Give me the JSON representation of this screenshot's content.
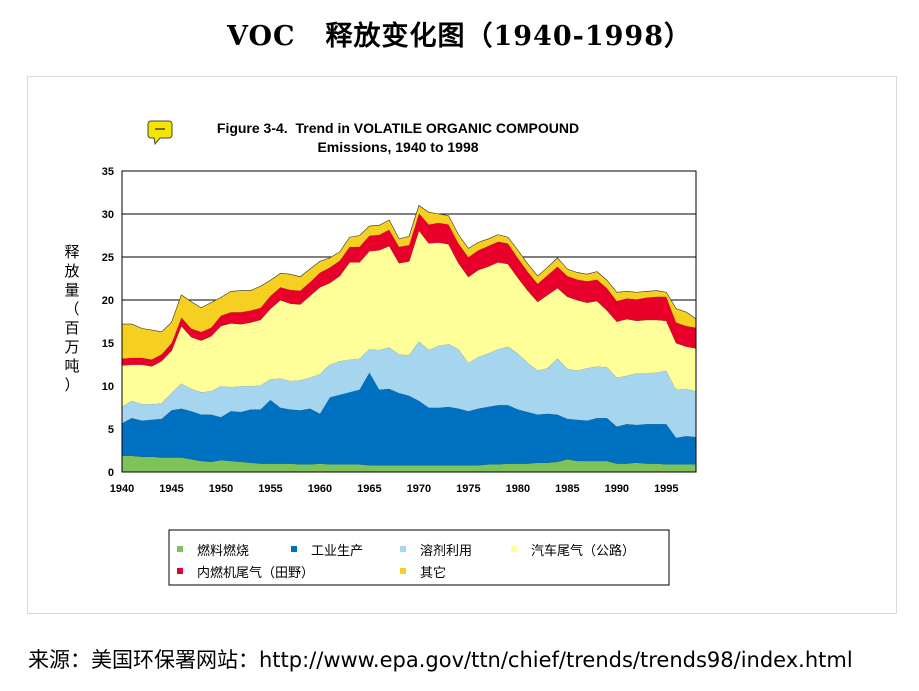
{
  "slide": {
    "title_prefix": "VOC",
    "title_main": "释放变化图（1940-1998）",
    "source": "来源：美国环保署网站：http://www.epa.gov/ttn/chief/trends/trends98/index.html"
  },
  "chart_data": {
    "type": "area",
    "stacked": true,
    "title_line1": "Figure 3-4.  Trend in VOLATILE ORGANIC COMPOUND",
    "title_line2": "Emissions, 1940 to 1998",
    "ylabel": "释放量（百万吨）",
    "xlabel": "",
    "ylim": [
      0,
      35
    ],
    "xlim": [
      1940,
      1998
    ],
    "yticks": [
      "0",
      "5",
      "10",
      "15",
      "20",
      "25",
      "30",
      "35"
    ],
    "xticks": [
      "1940",
      "1945",
      "1950",
      "1955",
      "1960",
      "1965",
      "1970",
      "1975",
      "1980",
      "1985",
      "1990",
      "1995"
    ],
    "grid": true,
    "legend_position": "bottom",
    "x": [
      1940,
      1941,
      1942,
      1943,
      1944,
      1945,
      1946,
      1947,
      1948,
      1949,
      1950,
      1951,
      1952,
      1953,
      1954,
      1955,
      1956,
      1957,
      1958,
      1959,
      1960,
      1961,
      1962,
      1963,
      1964,
      1965,
      1966,
      1967,
      1968,
      1969,
      1970,
      1971,
      1972,
      1973,
      1974,
      1975,
      1976,
      1977,
      1978,
      1979,
      1980,
      1981,
      1982,
      1983,
      1984,
      1985,
      1986,
      1987,
      1988,
      1989,
      1990,
      1991,
      1992,
      1993,
      1994,
      1995,
      1996,
      1997,
      1998
    ],
    "series": [
      {
        "name": "燃料燃烧",
        "color": "#7dc35a",
        "values": [
          1.9,
          1.9,
          1.8,
          1.8,
          1.7,
          1.7,
          1.7,
          1.5,
          1.3,
          1.2,
          1.4,
          1.3,
          1.2,
          1.1,
          1.0,
          1.0,
          1.0,
          1.0,
          0.9,
          0.9,
          1.0,
          0.9,
          0.9,
          0.9,
          0.9,
          0.8,
          0.8,
          0.8,
          0.8,
          0.8,
          0.8,
          0.8,
          0.8,
          0.8,
          0.8,
          0.8,
          0.8,
          0.9,
          0.9,
          1.0,
          1.0,
          1.0,
          1.1,
          1.1,
          1.2,
          1.5,
          1.3,
          1.3,
          1.3,
          1.3,
          1.0,
          1.0,
          1.1,
          1.0,
          1.0,
          0.9,
          0.9,
          0.9,
          0.9
        ]
      },
      {
        "name": "工业生产",
        "color": "#0070c0",
        "values": [
          3.8,
          4.4,
          4.2,
          4.3,
          4.5,
          5.5,
          5.7,
          5.6,
          5.4,
          5.5,
          5.0,
          5.8,
          5.8,
          6.2,
          6.3,
          7.4,
          6.5,
          6.3,
          6.3,
          6.5,
          5.8,
          7.8,
          8.1,
          8.4,
          8.7,
          10.8,
          8.8,
          8.9,
          8.4,
          8.1,
          7.5,
          6.7,
          6.7,
          6.8,
          6.6,
          6.3,
          6.6,
          6.7,
          6.9,
          6.8,
          6.3,
          6.0,
          5.6,
          5.7,
          5.5,
          4.7,
          4.8,
          4.7,
          5.0,
          5.0,
          4.3,
          4.6,
          4.4,
          4.6,
          4.6,
          4.7,
          3.1,
          3.3,
          3.2
        ]
      },
      {
        "name": "溶剂利用",
        "color": "#a6d5f0",
        "values": [
          1.9,
          2.0,
          1.9,
          1.8,
          1.8,
          2.0,
          2.9,
          2.6,
          2.6,
          2.7,
          3.6,
          2.8,
          3.0,
          2.7,
          2.8,
          2.4,
          3.4,
          3.3,
          3.5,
          3.6,
          4.6,
          3.8,
          3.9,
          3.8,
          3.6,
          2.7,
          4.6,
          4.8,
          4.5,
          4.7,
          6.9,
          6.7,
          7.2,
          7.3,
          6.9,
          5.6,
          6.0,
          6.2,
          6.5,
          6.8,
          6.5,
          5.7,
          5.1,
          5.3,
          6.5,
          5.8,
          5.7,
          6.1,
          6.0,
          5.9,
          5.7,
          5.6,
          6.0,
          5.9,
          6.0,
          6.2,
          5.6,
          5.5,
          5.3
        ]
      },
      {
        "name": "汽车尾气（公路）",
        "color": "#ffff99",
        "values": [
          4.8,
          4.2,
          4.6,
          4.4,
          4.9,
          4.9,
          6.7,
          6.0,
          6.0,
          6.4,
          7.0,
          7.4,
          7.2,
          7.4,
          7.6,
          8.2,
          9.1,
          9.0,
          8.8,
          9.5,
          10.1,
          9.5,
          9.9,
          11.3,
          11.2,
          11.4,
          11.6,
          11.8,
          10.6,
          10.9,
          12.9,
          12.4,
          12.0,
          11.6,
          10.0,
          10.0,
          10.1,
          10.1,
          10.1,
          9.6,
          8.8,
          8.4,
          8.0,
          8.5,
          8.2,
          8.4,
          8.2,
          7.6,
          7.6,
          6.6,
          6.5,
          6.6,
          6.1,
          6.2,
          6.1,
          5.8,
          5.4,
          4.9,
          5.0
        ]
      },
      {
        "name": "内燃机尾气（田野）",
        "color": "#e8002a",
        "values": [
          0.8,
          0.8,
          0.8,
          0.8,
          0.8,
          0.9,
          1.0,
          1.0,
          1.0,
          1.0,
          1.2,
          1.3,
          1.4,
          1.4,
          1.4,
          1.5,
          1.5,
          1.6,
          1.6,
          1.6,
          1.7,
          1.8,
          1.8,
          1.8,
          1.8,
          1.8,
          1.8,
          1.9,
          1.9,
          1.9,
          2.0,
          2.2,
          2.3,
          2.3,
          2.3,
          2.3,
          2.3,
          2.4,
          2.4,
          2.4,
          2.3,
          2.2,
          2.1,
          2.3,
          2.5,
          2.4,
          2.4,
          2.5,
          2.5,
          2.6,
          2.4,
          2.4,
          2.5,
          2.6,
          2.7,
          2.8,
          2.4,
          2.4,
          2.4
        ]
      },
      {
        "name": "其它",
        "color": "#f5d020",
        "values": [
          4.0,
          3.9,
          3.4,
          3.4,
          2.6,
          2.4,
          2.6,
          3.1,
          2.8,
          2.9,
          2.1,
          2.4,
          2.5,
          2.3,
          2.5,
          1.8,
          1.6,
          1.8,
          1.6,
          1.5,
          1.3,
          1.1,
          1.0,
          1.1,
          1.3,
          1.1,
          1.1,
          1.1,
          0.9,
          1.0,
          0.9,
          1.4,
          1.0,
          1.0,
          1.0,
          1.0,
          0.9,
          0.8,
          0.8,
          0.7,
          0.9,
          0.9,
          0.9,
          0.9,
          1.0,
          0.8,
          0.8,
          0.8,
          0.9,
          0.9,
          1.0,
          0.8,
          0.8,
          0.7,
          0.7,
          0.5,
          1.6,
          1.6,
          1.0
        ]
      }
    ]
  }
}
